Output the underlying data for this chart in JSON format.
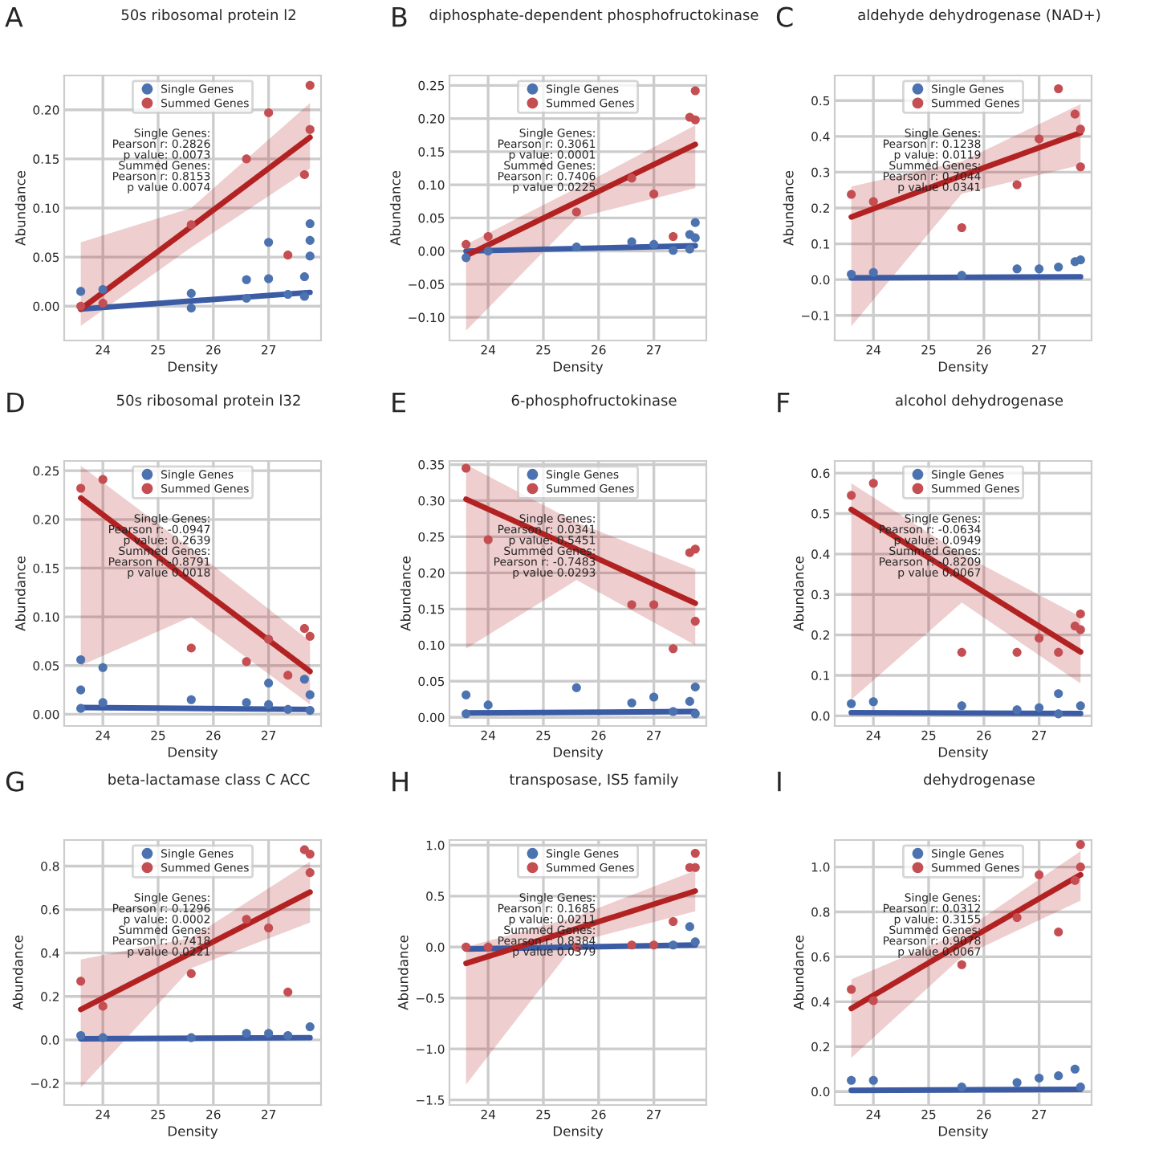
{
  "chart_data": [
    {
      "type": "scatter",
      "title": "50s ribosomal protein l2",
      "xlabel": "Density",
      "ylabel": "Abundance",
      "xlim": [
        23.3,
        27.95
      ],
      "xticks": [
        24,
        25,
        26,
        27
      ],
      "ylim": [
        -0.035,
        0.235
      ],
      "yticks": [
        {
          "value": 0,
          "label": "0.00"
        },
        {
          "value": 0.05,
          "label": "0.05"
        },
        {
          "value": 0.1,
          "label": "0.10"
        },
        {
          "value": 0.15,
          "label": "0.15"
        },
        {
          "value": 0.2,
          "label": "0.20"
        }
      ],
      "grid": true,
      "legend": "top",
      "annotations": [
        "A",
        "Single Genes:\nPearson r: 0.2826\np value: 0.0073\nSummed Genes:\nPearson r: 0.8153\np value 0.0074"
      ],
      "series": [
        {
          "name": "Single Genes",
          "type": "scatter",
          "color": "#4c72b0",
          "x": [
            23.6,
            24,
            25.6,
            25.6,
            26.6,
            26.6,
            27,
            27,
            27.35,
            27.65,
            27.65,
            27.75,
            27.75,
            27.75
          ],
          "values": [
            0.015,
            0.017,
            0.013,
            -0.002,
            0.027,
            0.008,
            0.065,
            0.028,
            0.012,
            0.03,
            0.01,
            0.084,
            0.067,
            0.051
          ]
        },
        {
          "name": "Summed Genes",
          "type": "scatter",
          "color": "#c44e52",
          "x": [
            23.6,
            24,
            25.6,
            26.6,
            27,
            27.35,
            27.65,
            27.75,
            27.75
          ],
          "values": [
            0.0,
            0.003,
            0.083,
            0.15,
            0.197,
            0.052,
            0.134,
            0.225,
            0.18
          ]
        },
        {
          "type": "line",
          "color": "#3b5ba5",
          "x": [
            23.6,
            27.75
          ],
          "values": [
            -0.003,
            0.014
          ]
        },
        {
          "type": "line",
          "color": "#b22222",
          "x": [
            23.6,
            25.6,
            27.75
          ],
          "values": [
            -0.003,
            0.081,
            0.172
          ],
          "lower": [
            -0.02,
            0.06,
            0.14
          ],
          "upper": [
            0.065,
            0.1,
            0.207
          ]
        }
      ]
    },
    {
      "type": "scatter",
      "title": "diphosphate-dependent phosphofructokinase",
      "xlabel": "Density",
      "ylabel": "Abundance",
      "xlim": [
        23.3,
        27.95
      ],
      "xticks": [
        24,
        25,
        26,
        27
      ],
      "ylim": [
        -0.135,
        0.265
      ],
      "yticks": [
        {
          "value": -0.1,
          "label": "−0.10"
        },
        {
          "value": -0.05,
          "label": "−0.05"
        },
        {
          "value": 0,
          "label": "0.00"
        },
        {
          "value": 0.05,
          "label": "0.05"
        },
        {
          "value": 0.1,
          "label": "0.10"
        },
        {
          "value": 0.15,
          "label": "0.15"
        },
        {
          "value": 0.2,
          "label": "0.20"
        },
        {
          "value": 0.25,
          "label": "0.25"
        }
      ],
      "grid": true,
      "legend": "top",
      "annotations": [
        "B",
        "Single Genes:\nPearson r: 0.3061\np value: 0.0001\nSummed Genes:\nPearson r: 0.7406\np value 0.0225"
      ],
      "series": [
        {
          "name": "Single Genes",
          "type": "scatter",
          "color": "#4c72b0",
          "x": [
            23.6,
            24,
            25.6,
            26.6,
            27,
            27.35,
            27.65,
            27.65,
            27.75,
            27.75
          ],
          "values": [
            -0.01,
            0.0,
            0.006,
            0.014,
            0.01,
            0.001,
            0.025,
            0.003,
            0.043,
            0.02
          ]
        },
        {
          "name": "Summed Genes",
          "type": "scatter",
          "color": "#c44e52",
          "x": [
            23.6,
            24,
            25.6,
            26.6,
            27,
            27.35,
            27.65,
            27.75,
            27.75
          ],
          "values": [
            0.01,
            0.022,
            0.059,
            0.11,
            0.086,
            0.022,
            0.202,
            0.242,
            0.198
          ]
        },
        {
          "type": "line",
          "color": "#3b5ba5",
          "x": [
            23.6,
            27.75
          ],
          "values": [
            0.0,
            0.008
          ]
        },
        {
          "type": "line",
          "color": "#b22222",
          "x": [
            23.6,
            25.6,
            27.75
          ],
          "values": [
            -0.007,
            0.074,
            0.161
          ],
          "lower": [
            -0.12,
            0.05,
            0.095
          ],
          "upper": [
            0.01,
            0.095,
            0.19
          ]
        }
      ]
    },
    {
      "type": "scatter",
      "title": "aldehyde dehydrogenase (NAD+)",
      "xlabel": "Density",
      "ylabel": "Abundance",
      "xlim": [
        23.3,
        27.95
      ],
      "xticks": [
        24,
        25,
        26,
        27
      ],
      "ylim": [
        -0.17,
        0.57
      ],
      "yticks": [
        {
          "value": -0.1,
          "label": "−0.1"
        },
        {
          "value": 0,
          "label": "0.0"
        },
        {
          "value": 0.1,
          "label": "0.1"
        },
        {
          "value": 0.2,
          "label": "0.2"
        },
        {
          "value": 0.3,
          "label": "0.3"
        },
        {
          "value": 0.4,
          "label": "0.4"
        },
        {
          "value": 0.5,
          "label": "0.5"
        }
      ],
      "grid": true,
      "legend": "top",
      "annotations": [
        "C",
        "Single Genes:\nPearson r: 0.1238\np value: 0.0119\nSummed Genes:\nPearson r: 0.7044\np value 0.0341"
      ],
      "series": [
        {
          "name": "Single Genes",
          "type": "scatter",
          "color": "#4c72b0",
          "x": [
            23.6,
            24,
            25.6,
            26.6,
            27,
            27.35,
            27.65,
            27.75
          ],
          "values": [
            0.015,
            0.02,
            0.012,
            0.03,
            0.03,
            0.035,
            0.05,
            0.055
          ]
        },
        {
          "name": "Summed Genes",
          "type": "scatter",
          "color": "#c44e52",
          "x": [
            23.6,
            24,
            25.6,
            26.6,
            27,
            27.35,
            27.65,
            27.75,
            27.75
          ],
          "values": [
            0.238,
            0.218,
            0.145,
            0.265,
            0.393,
            0.533,
            0.462,
            0.42,
            0.315
          ]
        },
        {
          "type": "line",
          "color": "#3b5ba5",
          "x": [
            23.6,
            27.75
          ],
          "values": [
            0.005,
            0.008
          ]
        },
        {
          "type": "line",
          "color": "#b22222",
          "x": [
            23.6,
            25.6,
            27.75
          ],
          "values": [
            0.175,
            0.29,
            0.41
          ],
          "lower": [
            -0.13,
            0.24,
            0.32
          ],
          "upper": [
            0.26,
            0.33,
            0.49
          ]
        }
      ]
    },
    {
      "type": "scatter",
      "title": "50s ribosomal protein l32",
      "xlabel": "Density",
      "ylabel": "Abundance",
      "xlim": [
        23.3,
        27.95
      ],
      "xticks": [
        24,
        25,
        26,
        27
      ],
      "ylim": [
        -0.012,
        0.26
      ],
      "yticks": [
        {
          "value": 0,
          "label": "0.00"
        },
        {
          "value": 0.05,
          "label": "0.05"
        },
        {
          "value": 0.1,
          "label": "0.10"
        },
        {
          "value": 0.15,
          "label": "0.15"
        },
        {
          "value": 0.2,
          "label": "0.20"
        },
        {
          "value": 0.25,
          "label": "0.25"
        }
      ],
      "grid": true,
      "legend": "top",
      "annotations": [
        "D",
        "Single Genes:\nPearson r: -0.0947\np value: 0.2639\nSummed Genes:\nPearson r: -0.8791\np value 0.0018"
      ],
      "series": [
        {
          "name": "Single Genes",
          "type": "scatter",
          "color": "#4c72b0",
          "x": [
            23.6,
            23.6,
            23.6,
            24,
            24,
            25.6,
            26.6,
            27,
            27,
            27.35,
            27.65,
            27.75,
            27.75
          ],
          "values": [
            0.056,
            0.025,
            0.006,
            0.048,
            0.012,
            0.015,
            0.012,
            0.032,
            0.01,
            0.005,
            0.036,
            0.02,
            0.004
          ]
        },
        {
          "name": "Summed Genes",
          "type": "scatter",
          "color": "#c44e52",
          "x": [
            23.6,
            24,
            25.6,
            26.6,
            27,
            27.35,
            27.65,
            27.75
          ],
          "values": [
            0.232,
            0.241,
            0.068,
            0.054,
            0.077,
            0.04,
            0.088,
            0.08
          ]
        },
        {
          "type": "line",
          "color": "#3b5ba5",
          "x": [
            23.6,
            27.75
          ],
          "values": [
            0.007,
            0.005
          ]
        },
        {
          "type": "line",
          "color": "#b22222",
          "x": [
            23.6,
            25.6,
            27.75
          ],
          "values": [
            0.222,
            0.136,
            0.044
          ],
          "lower": [
            0.05,
            0.1,
            0.01
          ],
          "upper": [
            0.255,
            0.17,
            0.075
          ]
        }
      ]
    },
    {
      "type": "scatter",
      "title": "6-phosphofructokinase",
      "xlabel": "Density",
      "ylabel": "Abundance",
      "xlim": [
        23.3,
        27.95
      ],
      "xticks": [
        24,
        25,
        26,
        27
      ],
      "ylim": [
        -0.012,
        0.355
      ],
      "yticks": [
        {
          "value": 0,
          "label": "0.00"
        },
        {
          "value": 0.05,
          "label": "0.05"
        },
        {
          "value": 0.1,
          "label": "0.10"
        },
        {
          "value": 0.15,
          "label": "0.15"
        },
        {
          "value": 0.2,
          "label": "0.20"
        },
        {
          "value": 0.25,
          "label": "0.25"
        },
        {
          "value": 0.3,
          "label": "0.30"
        },
        {
          "value": 0.35,
          "label": "0.35"
        }
      ],
      "grid": true,
      "legend": "top",
      "annotations": [
        "E",
        "Single Genes:\nPearson r: 0.0341\np value: 0.5451\nSummed Genes:\nPearson r: -0.7483\np value 0.0293"
      ],
      "series": [
        {
          "name": "Single Genes",
          "type": "scatter",
          "color": "#4c72b0",
          "x": [
            23.6,
            23.6,
            24,
            25.6,
            26.6,
            27,
            27.35,
            27.65,
            27.75,
            27.75
          ],
          "values": [
            0.031,
            0.005,
            0.017,
            0.041,
            0.02,
            0.028,
            0.008,
            0.022,
            0.042,
            0.005
          ]
        },
        {
          "name": "Summed Genes",
          "type": "scatter",
          "color": "#c44e52",
          "x": [
            23.6,
            24,
            26.6,
            27,
            27.35,
            27.65,
            27.75,
            27.75
          ],
          "values": [
            0.345,
            0.246,
            0.156,
            0.156,
            0.095,
            0.228,
            0.233,
            0.133
          ]
        },
        {
          "type": "line",
          "color": "#3b5ba5",
          "x": [
            23.6,
            27.75
          ],
          "values": [
            0.006,
            0.008
          ]
        },
        {
          "type": "line",
          "color": "#b22222",
          "x": [
            23.6,
            25.6,
            27.75
          ],
          "values": [
            0.302,
            0.233,
            0.158
          ],
          "lower": [
            0.095,
            0.19,
            0.1
          ],
          "upper": [
            0.35,
            0.27,
            0.205
          ]
        }
      ]
    },
    {
      "type": "scatter",
      "title": "alcohol dehydrogenase",
      "xlabel": "Density",
      "ylabel": "Abundance",
      "xlim": [
        23.3,
        27.95
      ],
      "xticks": [
        24,
        25,
        26,
        27
      ],
      "ylim": [
        -0.025,
        0.63
      ],
      "yticks": [
        {
          "value": 0,
          "label": "0.0"
        },
        {
          "value": 0.1,
          "label": "0.1"
        },
        {
          "value": 0.2,
          "label": "0.2"
        },
        {
          "value": 0.3,
          "label": "0.3"
        },
        {
          "value": 0.4,
          "label": "0.4"
        },
        {
          "value": 0.5,
          "label": "0.5"
        },
        {
          "value": 0.6,
          "label": "0.6"
        }
      ],
      "grid": true,
      "legend": "top",
      "annotations": [
        "F",
        "Single Genes:\nPearson r: -0.0634\np value: 0.0949\nSummed Genes:\nPearson r: -0.8209\np value 0.0067"
      ],
      "series": [
        {
          "name": "Single Genes",
          "type": "scatter",
          "color": "#4c72b0",
          "x": [
            23.6,
            24,
            25.6,
            26.6,
            27,
            27.35,
            27.35,
            27.75
          ],
          "values": [
            0.03,
            0.035,
            0.025,
            0.015,
            0.02,
            0.055,
            0.005,
            0.025
          ]
        },
        {
          "name": "Summed Genes",
          "type": "scatter",
          "color": "#c44e52",
          "x": [
            23.6,
            24,
            25.6,
            26.6,
            27,
            27.35,
            27.65,
            27.75,
            27.75
          ],
          "values": [
            0.545,
            0.575,
            0.157,
            0.157,
            0.192,
            0.157,
            0.222,
            0.252,
            0.213
          ]
        },
        {
          "type": "line",
          "color": "#3b5ba5",
          "x": [
            23.6,
            27.75
          ],
          "values": [
            0.008,
            0.006
          ]
        },
        {
          "type": "line",
          "color": "#b22222",
          "x": [
            23.6,
            25.6,
            27.75
          ],
          "values": [
            0.51,
            0.34,
            0.158
          ],
          "lower": [
            0.04,
            0.28,
            0.08
          ],
          "upper": [
            0.575,
            0.4,
            0.245
          ]
        }
      ]
    },
    {
      "type": "scatter",
      "title": "beta-lactamase class C ACC",
      "xlabel": "Density",
      "ylabel": "Abundance",
      "xlim": [
        23.3,
        27.95
      ],
      "xticks": [
        24,
        25,
        26,
        27
      ],
      "ylim": [
        -0.3,
        0.92
      ],
      "yticks": [
        {
          "value": -0.2,
          "label": "−0.2"
        },
        {
          "value": 0,
          "label": "0.0"
        },
        {
          "value": 0.2,
          "label": "0.2"
        },
        {
          "value": 0.4,
          "label": "0.4"
        },
        {
          "value": 0.6,
          "label": "0.6"
        },
        {
          "value": 0.8,
          "label": "0.8"
        }
      ],
      "grid": true,
      "legend": "top",
      "annotations": [
        "G",
        "Single Genes:\nPearson r: 0.1296\np value: 0.0002\nSummed Genes:\nPearson r: 0.7418\np value 0.0221"
      ],
      "series": [
        {
          "name": "Single Genes",
          "type": "scatter",
          "color": "#4c72b0",
          "x": [
            23.6,
            24,
            25.6,
            26.6,
            27,
            27.35,
            27.75
          ],
          "values": [
            0.02,
            0.01,
            0.01,
            0.03,
            0.03,
            0.02,
            0.06
          ]
        },
        {
          "name": "Summed Genes",
          "type": "scatter",
          "color": "#c44e52",
          "x": [
            23.6,
            24,
            25.6,
            26.6,
            27,
            27.35,
            27.65,
            27.75,
            27.75
          ],
          "values": [
            0.27,
            0.155,
            0.305,
            0.555,
            0.515,
            0.22,
            0.875,
            0.855,
            0.77
          ]
        },
        {
          "type": "line",
          "color": "#3b5ba5",
          "x": [
            23.6,
            27.75
          ],
          "values": [
            0.005,
            0.01
          ]
        },
        {
          "type": "line",
          "color": "#b22222",
          "x": [
            23.6,
            25.6,
            27.75
          ],
          "values": [
            0.14,
            0.4,
            0.68
          ],
          "lower": [
            -0.22,
            0.33,
            0.54
          ],
          "upper": [
            0.37,
            0.47,
            0.82
          ]
        }
      ]
    },
    {
      "type": "scatter",
      "title": "transposase, IS5 family",
      "xlabel": "Density",
      "ylabel": "Abundance",
      "xlim": [
        23.3,
        27.95
      ],
      "xticks": [
        24,
        25,
        26,
        27
      ],
      "ylim": [
        -1.55,
        1.05
      ],
      "yticks": [
        {
          "value": -1.5,
          "label": "−1.5"
        },
        {
          "value": -1,
          "label": "−1.0"
        },
        {
          "value": -0.5,
          "label": "−0.5"
        },
        {
          "value": 0,
          "label": "0.0"
        },
        {
          "value": 0.5,
          "label": "0.5"
        },
        {
          "value": 1,
          "label": "1.0"
        }
      ],
      "grid": true,
      "legend": "top",
      "annotations": [
        "H",
        "Single Genes:\nPearson r: 0.1685\np value: 0.0211\nSummed Genes:\nPearson r: 0.8384\np value 0.0379"
      ],
      "series": [
        {
          "name": "Single Genes",
          "type": "scatter",
          "color": "#4c72b0",
          "x": [
            27.35,
            27.65,
            27.75
          ],
          "values": [
            0.02,
            0.2,
            0.05
          ]
        },
        {
          "name": "Summed Genes",
          "type": "scatter",
          "color": "#c44e52",
          "x": [
            23.6,
            24,
            25.6,
            26.6,
            27,
            27.35,
            27.65,
            27.75,
            27.75
          ],
          "values": [
            0.0,
            0.0,
            0.0,
            0.02,
            0.02,
            0.25,
            0.78,
            0.92,
            0.78
          ]
        },
        {
          "type": "line",
          "color": "#3b5ba5",
          "x": [
            23.6,
            27.75
          ],
          "values": [
            -0.02,
            0.02
          ]
        },
        {
          "type": "line",
          "color": "#b22222",
          "x": [
            23.6,
            25.6,
            27.75
          ],
          "values": [
            -0.16,
            0.18,
            0.55
          ],
          "lower": [
            -1.35,
            0.05,
            0.35
          ],
          "upper": [
            0.0,
            0.3,
            0.75
          ]
        }
      ]
    },
    {
      "type": "scatter",
      "title": "dehydrogenase",
      "xlabel": "Density",
      "ylabel": "Abundance",
      "xlim": [
        23.3,
        27.95
      ],
      "xticks": [
        24,
        25,
        26,
        27
      ],
      "ylim": [
        -0.06,
        1.12
      ],
      "yticks": [
        {
          "value": 0,
          "label": "0.0"
        },
        {
          "value": 0.2,
          "label": "0.2"
        },
        {
          "value": 0.4,
          "label": "0.4"
        },
        {
          "value": 0.6,
          "label": "0.6"
        },
        {
          "value": 0.8,
          "label": "0.8"
        },
        {
          "value": 1,
          "label": "1.0"
        }
      ],
      "grid": true,
      "legend": "top",
      "annotations": [
        "I",
        "Single Genes:\nPearson r: 0.0312\np value: 0.3155\nSummed Genes:\nPearson r: 0.9078\np value 0.0067"
      ],
      "series": [
        {
          "name": "Single Genes",
          "type": "scatter",
          "color": "#4c72b0",
          "x": [
            23.6,
            24,
            25.6,
            26.6,
            27,
            27.35,
            27.65,
            27.75
          ],
          "values": [
            0.05,
            0.05,
            0.02,
            0.04,
            0.06,
            0.07,
            0.1,
            0.02
          ]
        },
        {
          "name": "Summed Genes",
          "type": "scatter",
          "color": "#c44e52",
          "x": [
            23.6,
            24,
            25.6,
            26.6,
            27,
            27.35,
            27.65,
            27.75,
            27.75
          ],
          "values": [
            0.455,
            0.405,
            0.565,
            0.775,
            0.965,
            0.71,
            0.94,
            1.1,
            1.0
          ]
        },
        {
          "type": "line",
          "color": "#3b5ba5",
          "x": [
            23.6,
            27.75
          ],
          "values": [
            0.005,
            0.01
          ]
        },
        {
          "type": "line",
          "color": "#b22222",
          "x": [
            23.6,
            25.6,
            27.75
          ],
          "values": [
            0.37,
            0.66,
            0.965
          ],
          "lower": [
            0.15,
            0.6,
            0.85
          ],
          "upper": [
            0.5,
            0.71,
            1.07
          ]
        }
      ]
    }
  ]
}
